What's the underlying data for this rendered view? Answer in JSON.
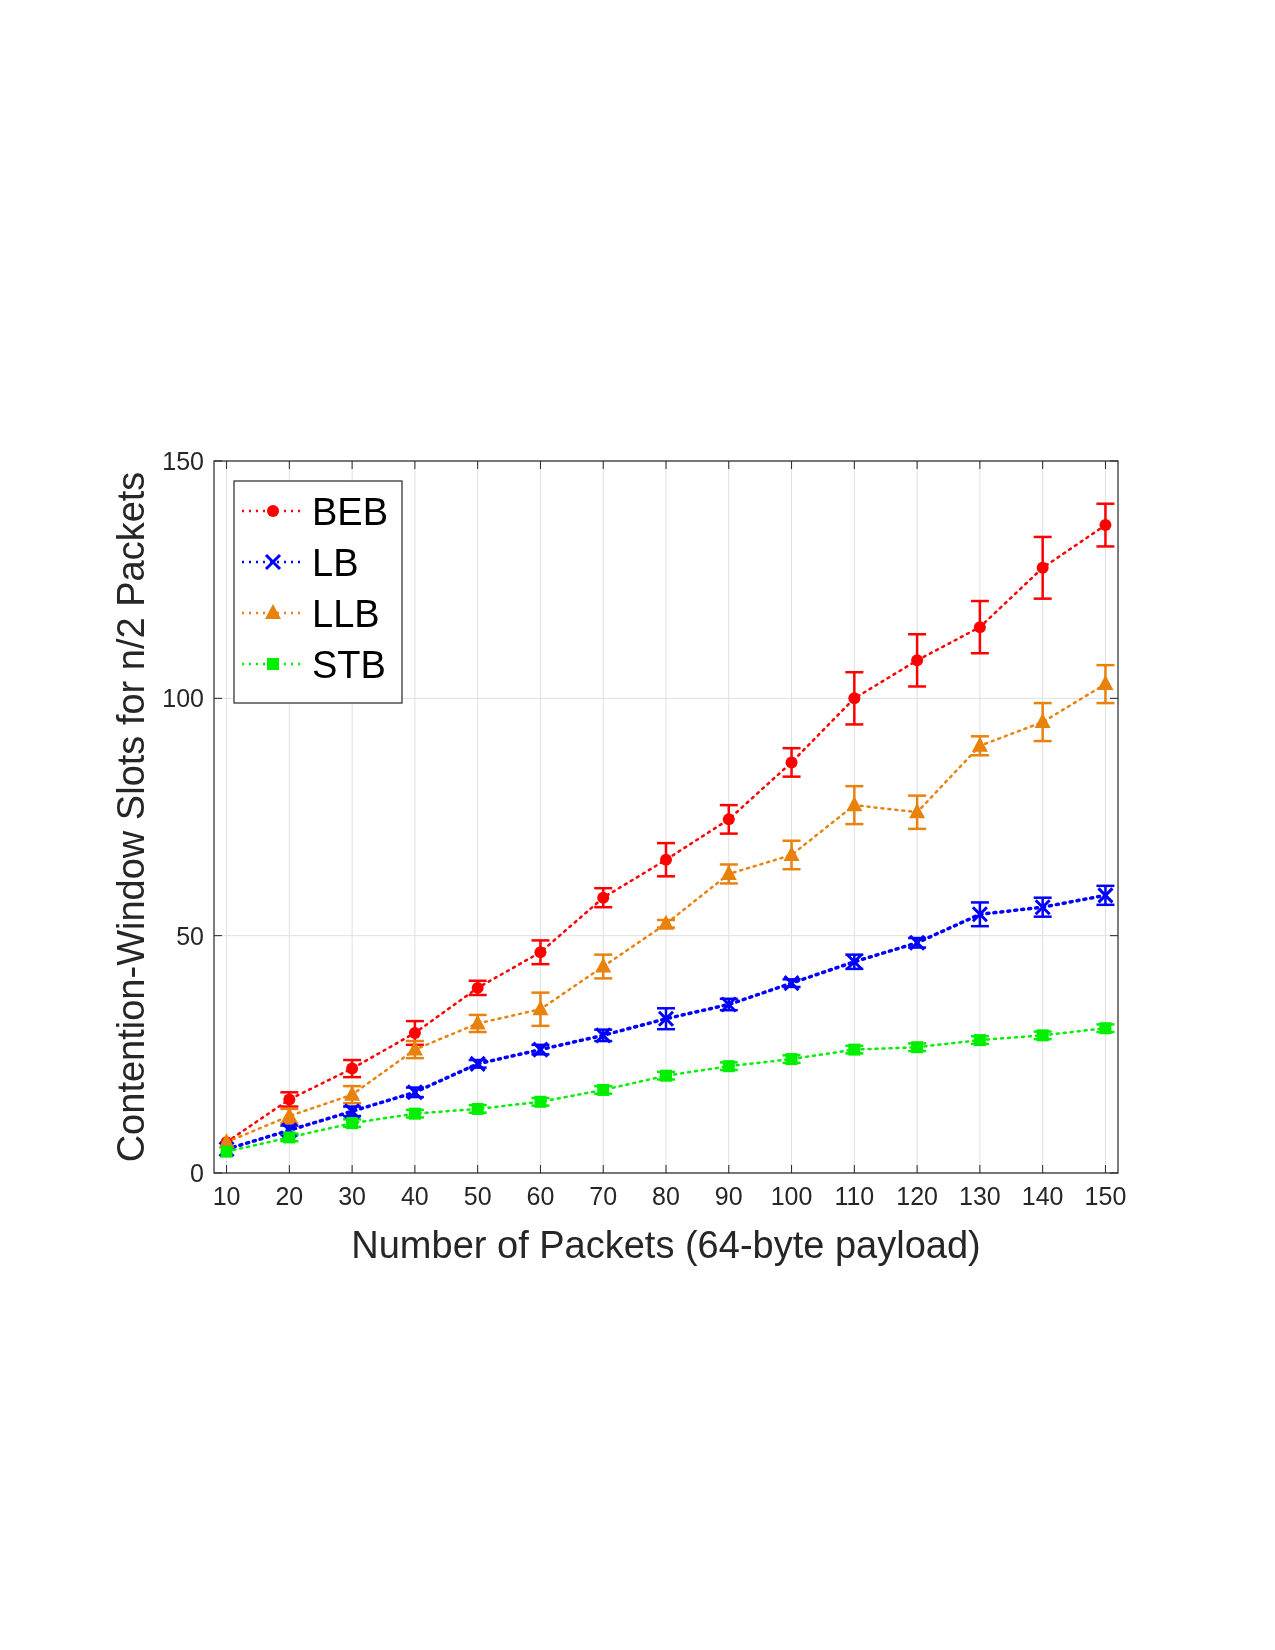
{
  "chart_data": {
    "type": "line",
    "xlabel": "Number of Packets (64-byte payload)",
    "ylabel": "Contention-Window Slots for n/2 Packets",
    "x": [
      10,
      20,
      30,
      40,
      50,
      60,
      70,
      80,
      90,
      100,
      110,
      120,
      130,
      140,
      150
    ],
    "xlim": [
      8,
      152
    ],
    "xticks": [
      10,
      20,
      30,
      40,
      50,
      60,
      70,
      80,
      90,
      100,
      110,
      120,
      130,
      140,
      150
    ],
    "ylim": [
      0,
      150
    ],
    "yticks": [
      0,
      50,
      100,
      150
    ],
    "grid": true,
    "legend": "top left",
    "line_style": "dotted",
    "series": [
      {
        "name": "BEB",
        "color": "#ff0000",
        "marker": "circle",
        "values": [
          6.5,
          15.5,
          22,
          29.5,
          39,
          46.5,
          58,
          66,
          74.5,
          86.5,
          100,
          108,
          115,
          127.5,
          136.5
        ],
        "errors": [
          null,
          1.5,
          1.8,
          2.5,
          1.5,
          2.5,
          2,
          3.5,
          3,
          3,
          5.5,
          5.5,
          5.5,
          6.5,
          4.5
        ]
      },
      {
        "name": "LB",
        "color": "#0000ff",
        "marker": "cross",
        "values": [
          5,
          9,
          13,
          17,
          23,
          26,
          29,
          32.5,
          35.5,
          40,
          44.5,
          48.5,
          54.5,
          56,
          58.5
        ],
        "errors": [
          null,
          1,
          1,
          1,
          0.8,
          1,
          1.2,
          2.2,
          1.2,
          0.8,
          1.5,
          1,
          2.5,
          2,
          2
        ]
      },
      {
        "name": "LLB",
        "color": "#e8820c",
        "marker": "triangle",
        "values": [
          6.5,
          12,
          16.5,
          26,
          31.5,
          34.5,
          43.5,
          52.5,
          63,
          67,
          77.5,
          76,
          90,
          95,
          103
        ],
        "errors": [
          null,
          1.5,
          1.8,
          1.8,
          1.8,
          3.5,
          2.5,
          0.8,
          2,
          3,
          4,
          3.5,
          2,
          4,
          4
        ]
      },
      {
        "name": "STB",
        "color": "#00ee00",
        "marker": "square",
        "values": [
          4.5,
          7.5,
          10.5,
          12.5,
          13.5,
          15,
          17.5,
          20.5,
          22.5,
          24,
          26,
          26.5,
          28,
          29,
          30.5
        ],
        "errors": [
          null,
          0.8,
          0.8,
          0.8,
          0.8,
          0.8,
          0.8,
          0.8,
          0.8,
          0.8,
          0.8,
          0.8,
          0.8,
          0.8,
          0.8
        ]
      }
    ]
  }
}
